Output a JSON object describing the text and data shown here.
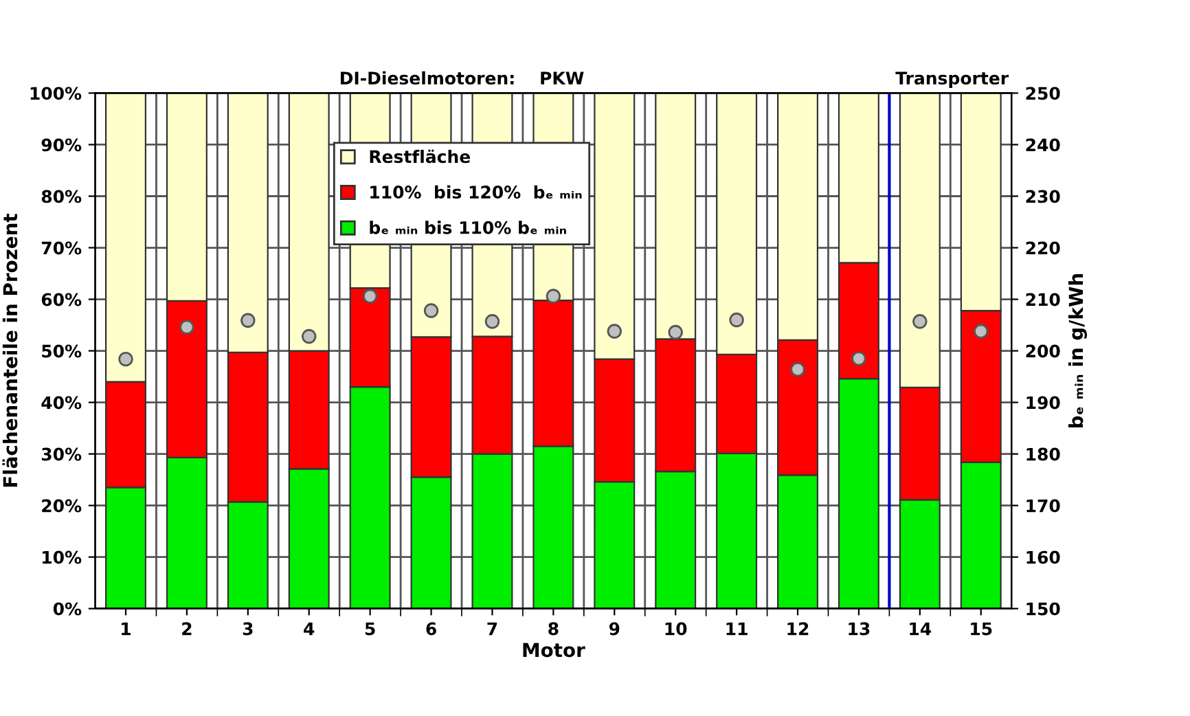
{
  "chart_data": {
    "type": "bar",
    "stacked": true,
    "title": "DI-Dieselmotoren:    PKW",
    "xlabel": "Motor",
    "ylabel": "Flächenanteile in Prozent",
    "y2label": "bₑ ₘᵢₙ in g/kWh",
    "x": [
      1,
      2,
      3,
      4,
      5,
      6,
      7,
      8,
      9,
      10,
      11,
      12,
      13,
      14,
      15
    ],
    "xlim": [
      0.5,
      15.5
    ],
    "xticks": [
      1,
      2,
      3,
      4,
      5,
      6,
      7,
      8,
      9,
      10,
      11,
      12,
      13,
      14,
      15
    ],
    "ylim": [
      0,
      100
    ],
    "yticks": [
      {
        "value": 0,
        "label": "0%"
      },
      {
        "value": 10,
        "label": "10%"
      },
      {
        "value": 20,
        "label": "20%"
      },
      {
        "value": 30,
        "label": "30%"
      },
      {
        "value": 40,
        "label": "40%"
      },
      {
        "value": 50,
        "label": "50%"
      },
      {
        "value": 60,
        "label": "60%"
      },
      {
        "value": 70,
        "label": "70%"
      },
      {
        "value": 80,
        "label": "80%"
      },
      {
        "value": 90,
        "label": "90%"
      },
      {
        "value": 100,
        "label": "100%"
      }
    ],
    "y2lim": [
      150,
      250
    ],
    "y2ticks": [
      150,
      160,
      170,
      180,
      190,
      200,
      210,
      220,
      230,
      240,
      250
    ],
    "series": [
      {
        "name": "bₑ ₘᵢₙ bis 110% bₑ ₘᵢₙ",
        "color": "#00ee00",
        "values": [
          23.5,
          29.3,
          20.7,
          27.1,
          43,
          25.5,
          30,
          31.5,
          24.6,
          26.6,
          30.1,
          25.9,
          44.6,
          21.1,
          28.4
        ]
      },
      {
        "name": "110%  bis 120%  bₑ ₘᵢₙ",
        "color": "#ff0000",
        "values": [
          20.5,
          30.4,
          29,
          22.9,
          19.2,
          27.2,
          22.8,
          28.3,
          23.8,
          25.7,
          19.2,
          26.2,
          22.5,
          21.8,
          29.4
        ]
      },
      {
        "name": "Restfläche",
        "color": "#ffffcc",
        "values": [
          56,
          40.3,
          50.3,
          50,
          37.8,
          47.3,
          47.2,
          40.2,
          51.6,
          47.7,
          50.7,
          47.9,
          32.9,
          57.1,
          42.2
        ]
      },
      {
        "type": "scatter",
        "axis": "y2",
        "color": "#c0c0c0",
        "marker": "circle",
        "values": [
          198.4,
          204.6,
          205.9,
          202.8,
          210.6,
          207.8,
          205.7,
          210.6,
          203.8,
          203.6,
          206,
          196.4,
          198.5,
          205.7,
          203.8
        ]
      }
    ],
    "ref_lines": [
      {
        "axis": "x",
        "value": 13.5,
        "label": "Transporter",
        "color": "#0000cc"
      }
    ],
    "grid": true,
    "legend": "top"
  }
}
